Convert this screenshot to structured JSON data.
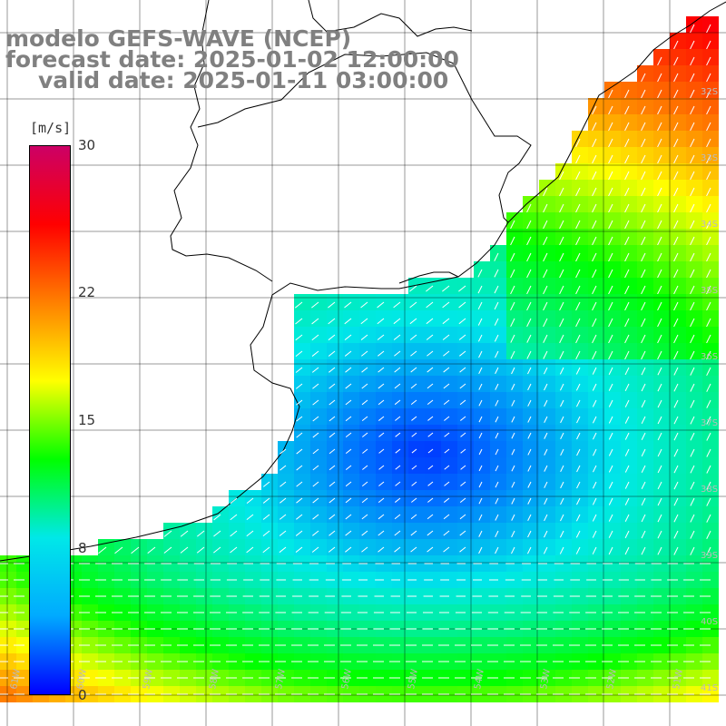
{
  "title": {
    "line1": "modelo GEFS-WAVE (NCEP)",
    "line2": "forecast date: 2025-01-02 12:00:00",
    "line3": "valid date: 2025-01-11 03:00:00"
  },
  "colorbar": {
    "unit": "[m/s]",
    "min": 0,
    "max": 30,
    "ticks": [
      "0",
      "8",
      "15",
      "22",
      "30"
    ],
    "colors": [
      "#0000ff",
      "#00aaff",
      "#00e8e8",
      "#00ff00",
      "#ffff00",
      "#ff8000",
      "#ff0000",
      "#cc0066"
    ]
  },
  "map": {
    "lat_labels": [
      "32S",
      "33S",
      "34S",
      "35S",
      "36S",
      "37S",
      "38S",
      "39S",
      "40S",
      "41S"
    ],
    "lon_labels": [
      "61W",
      "60W",
      "59W",
      "58W",
      "57W",
      "56W",
      "55W",
      "54W",
      "53W",
      "52W",
      "51W"
    ],
    "land_color": "#ffffff",
    "grid_color": "#000000",
    "arrow_color": "#ffffff"
  }
}
